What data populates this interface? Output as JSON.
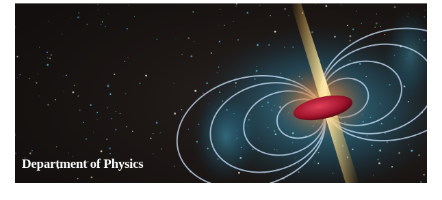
{
  "banner": {
    "caption": "Department of Physics"
  }
}
